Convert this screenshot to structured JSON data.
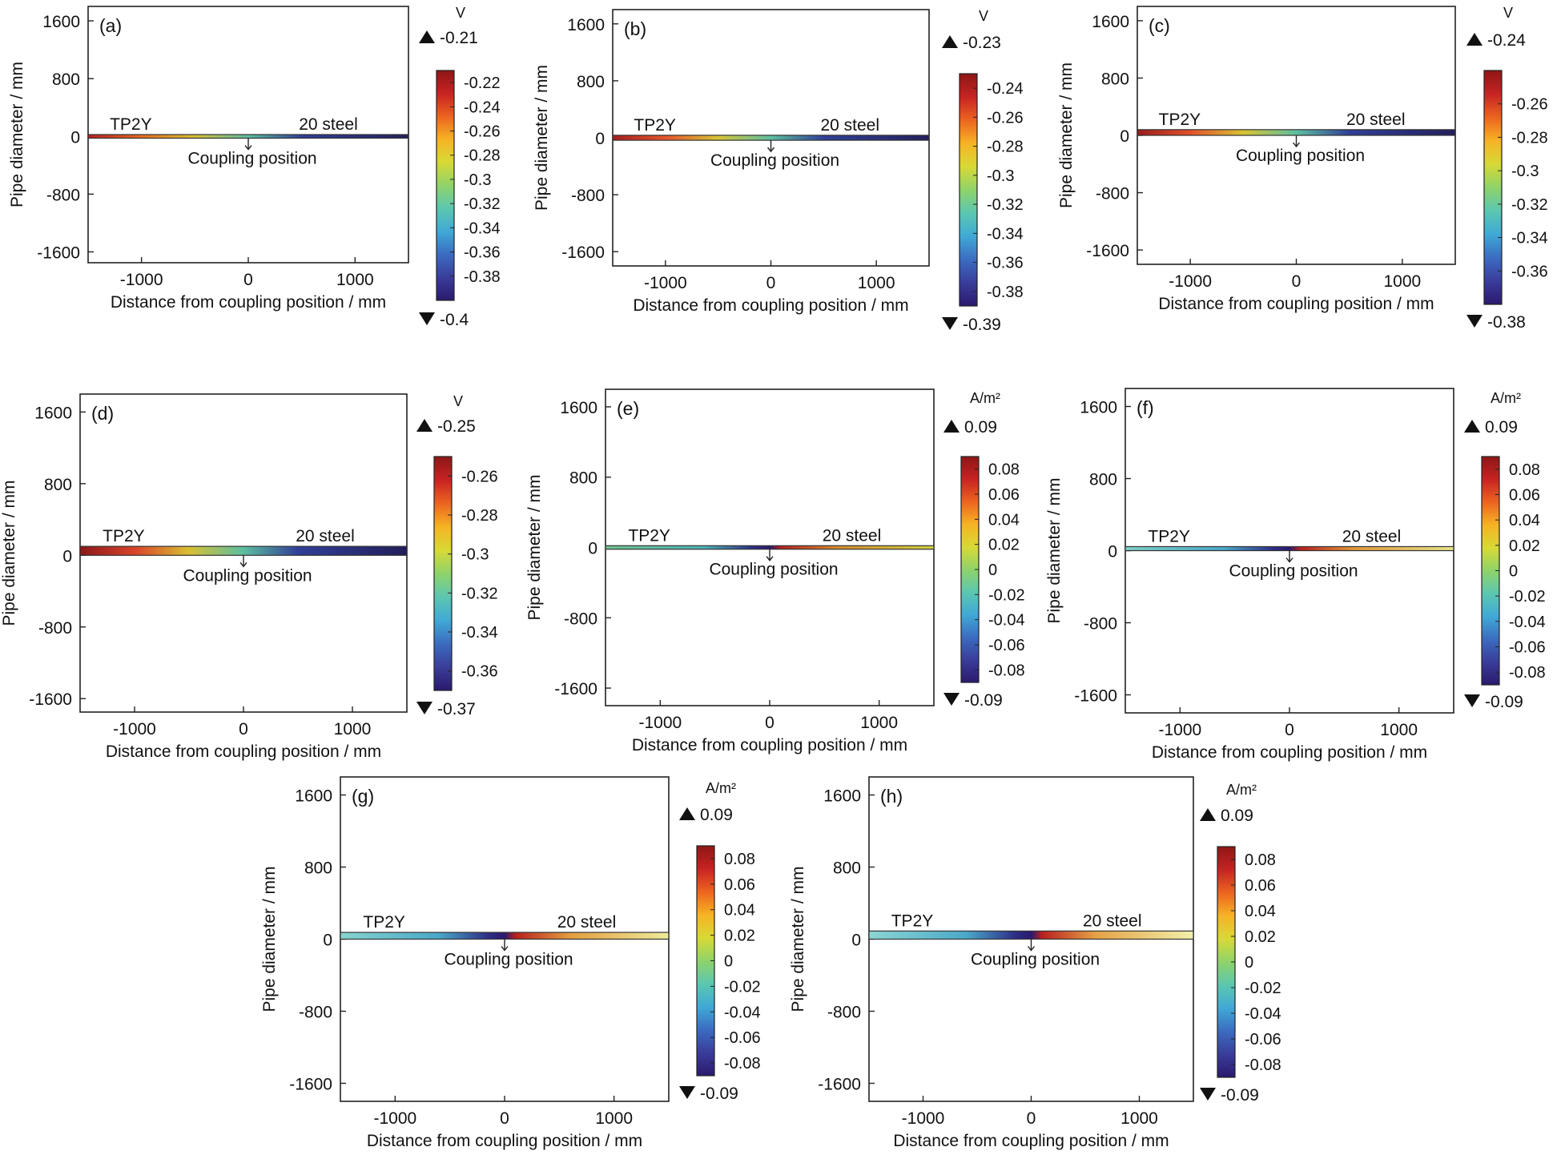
{
  "colormap": [
    "#2b1a6e",
    "#3a3d9a",
    "#3b6cc0",
    "#40a9d6",
    "#5cc7b0",
    "#8fd36a",
    "#d8d935",
    "#f6b324",
    "#ec6420",
    "#c72323",
    "#8e1616"
  ],
  "chart_data": [
    {
      "type": "heatmap",
      "panel": "(a)",
      "xlabel": "Distance from coupling position / mm",
      "ylabel": "Pipe diameter / mm",
      "xticks": [
        -1000,
        0,
        1000
      ],
      "yticks": [
        1600,
        800,
        0,
        -800,
        -1600
      ],
      "xlim": [
        -1500,
        1500
      ],
      "ylim": [
        -1750,
        1800
      ],
      "unit": "V",
      "cmax": "-0.21",
      "cmin": "-0.4",
      "colorbar_ticks": [
        "-0.22",
        "-0.24",
        "-0.26",
        "-0.28",
        "-0.3",
        "-0.32",
        "-0.34",
        "-0.36",
        "-0.38"
      ],
      "labels": {
        "left": "TP2Y",
        "right": "20 steel",
        "coupling": "Coupling position"
      },
      "pipe_y": [
        -25,
        25
      ],
      "field": [
        [
          "-1500",
          "#b82020"
        ],
        [
          "-1000",
          "#e86b20"
        ],
        [
          "-500",
          "#d8c032"
        ],
        [
          "0",
          "#5cbfa0"
        ],
        [
          "500",
          "#2e3f98"
        ],
        [
          "1500",
          "#24205e"
        ]
      ]
    },
    {
      "type": "heatmap",
      "panel": "(b)",
      "xlabel": "Distance from coupling position / mm",
      "ylabel": "Pipe diameter / mm",
      "xticks": [
        -1000,
        0,
        1000
      ],
      "yticks": [
        1600,
        800,
        0,
        -800,
        -1600
      ],
      "xlim": [
        -1500,
        1500
      ],
      "ylim": [
        -1800,
        1800
      ],
      "unit": "V",
      "cmax": "-0.23",
      "cmin": "-0.39",
      "colorbar_ticks": [
        "-0.24",
        "-0.26",
        "-0.28",
        "-0.3",
        "-0.32",
        "-0.34",
        "-0.36",
        "-0.38"
      ],
      "labels": {
        "left": "TP2Y",
        "right": "20 steel",
        "coupling": "Coupling position"
      },
      "pipe_y": [
        -35,
        35
      ],
      "field": [
        [
          "-1500",
          "#a61c1c"
        ],
        [
          "-1000",
          "#e5552b"
        ],
        [
          "-500",
          "#d7c534"
        ],
        [
          "0",
          "#5cbfa0"
        ],
        [
          "500",
          "#2f4196"
        ],
        [
          "1500",
          "#231f5c"
        ]
      ]
    },
    {
      "type": "heatmap",
      "panel": "(c)",
      "xlabel": "Distance from coupling position / mm",
      "ylabel": "Pipe diameter / mm",
      "xticks": [
        -1000,
        0,
        1000
      ],
      "yticks": [
        1600,
        800,
        0,
        -800,
        -1600
      ],
      "xlim": [
        -1500,
        1500
      ],
      "ylim": [
        -1800,
        1800
      ],
      "unit": "V",
      "cmax": "-0.24",
      "cmin": "-0.38",
      "colorbar_ticks": [
        "-0.26",
        "-0.28",
        "-0.3",
        "-0.32",
        "-0.34",
        "-0.36"
      ],
      "labels": {
        "left": "TP2Y",
        "right": "20 steel",
        "coupling": "Coupling position"
      },
      "pipe_y": [
        0,
        80
      ],
      "field": [
        [
          "-1500",
          "#9a1b1b"
        ],
        [
          "-1000",
          "#e2502a"
        ],
        [
          "-500",
          "#d8c232"
        ],
        [
          "0",
          "#5cbfa0"
        ],
        [
          "500",
          "#303f97"
        ],
        [
          "1500",
          "#231f5c"
        ]
      ]
    },
    {
      "type": "heatmap",
      "panel": "(d)",
      "xlabel": "Distance from coupling position / mm",
      "ylabel": "Pipe diameter / mm",
      "xticks": [
        -1000,
        0,
        1000
      ],
      "yticks": [
        1600,
        800,
        0,
        -800,
        -1600
      ],
      "xlim": [
        -1500,
        1500
      ],
      "ylim": [
        -1750,
        1800
      ],
      "unit": "V",
      "cmax": "-0.25",
      "cmin": "-0.37",
      "colorbar_ticks": [
        "-0.26",
        "-0.28",
        "-0.3",
        "-0.32",
        "-0.34",
        "-0.36"
      ],
      "labels": {
        "left": "TP2Y",
        "right": "20 steel",
        "coupling": "Coupling position"
      },
      "pipe_y": [
        0,
        100
      ],
      "field": [
        [
          "-1500",
          "#8a1818"
        ],
        [
          "-1000",
          "#d8432a"
        ],
        [
          "-500",
          "#d8bf32"
        ],
        [
          "0",
          "#5cbfa0"
        ],
        [
          "500",
          "#303f97"
        ],
        [
          "1500",
          "#221e5a"
        ]
      ]
    },
    {
      "type": "heatmap",
      "panel": "(e)",
      "xlabel": "Distance from coupling position / mm",
      "ylabel": "Pipe diameter / mm",
      "xticks": [
        -1000,
        0,
        1000
      ],
      "yticks": [
        1600,
        800,
        0,
        -800,
        -1600
      ],
      "xlim": [
        -1500,
        1500
      ],
      "ylim": [
        -1800,
        1800
      ],
      "unit": "A/m²",
      "cmax": "0.09",
      "cmin": "-0.09",
      "colorbar_ticks": [
        "0.08",
        "0.06",
        "0.04",
        "0.02",
        "0",
        "-0.02",
        "-0.04",
        "-0.06",
        "-0.08"
      ],
      "labels": {
        "left": "TP2Y",
        "right": "20 steel",
        "coupling": "Coupling position"
      },
      "pipe_y": [
        -20,
        20
      ],
      "field": [
        [
          "-1500",
          "#6ec48e"
        ],
        [
          "-600",
          "#4fb3b8"
        ],
        [
          "-150",
          "#2d2f86"
        ],
        [
          "0",
          "#2b1a6e"
        ],
        [
          "100",
          "#b8201f"
        ],
        [
          "600",
          "#d68a2c"
        ],
        [
          "1500",
          "#cfd040"
        ]
      ]
    },
    {
      "type": "heatmap",
      "panel": "(f)",
      "xlabel": "Distance from coupling position / mm",
      "ylabel": "Pipe diameter / mm",
      "xticks": [
        -1000,
        0,
        1000
      ],
      "yticks": [
        1600,
        800,
        0,
        -800,
        -1600
      ],
      "xlim": [
        -1500,
        1500
      ],
      "ylim": [
        -1800,
        1800
      ],
      "unit": "A/m²",
      "cmax": "0.09",
      "cmin": "-0.09",
      "colorbar_ticks": [
        "0.08",
        "0.06",
        "0.04",
        "0.02",
        "0",
        "-0.02",
        "-0.04",
        "-0.06",
        "-0.08"
      ],
      "labels": {
        "left": "TP2Y",
        "right": "20 steel",
        "coupling": "Coupling position"
      },
      "pipe_y": [
        0,
        45
      ],
      "field": [
        [
          "-1500",
          "#7fd0c6"
        ],
        [
          "-600",
          "#4aa8c8"
        ],
        [
          "-150",
          "#2d2f86"
        ],
        [
          "0",
          "#2b1a6e"
        ],
        [
          "100",
          "#b8201f"
        ],
        [
          "600",
          "#e19a3a"
        ],
        [
          "1500",
          "#e6e48a"
        ]
      ]
    },
    {
      "type": "heatmap",
      "panel": "(g)",
      "xlabel": "Distance from coupling position / mm",
      "ylabel": "Pipe diameter / mm",
      "xticks": [
        -1000,
        0,
        1000
      ],
      "yticks": [
        1600,
        800,
        0,
        -800,
        -1600
      ],
      "xlim": [
        -1500,
        1500
      ],
      "ylim": [
        -1800,
        1800
      ],
      "unit": "A/m²",
      "cmax": "0.09",
      "cmin": "-0.09",
      "colorbar_ticks": [
        "0.08",
        "0.06",
        "0.04",
        "0.02",
        "0",
        "-0.02",
        "-0.04",
        "-0.06",
        "-0.08"
      ],
      "labels": {
        "left": "TP2Y",
        "right": "20 steel",
        "coupling": "Coupling position"
      },
      "pipe_y": [
        0,
        75
      ],
      "field": [
        [
          "-1500",
          "#86d4ce"
        ],
        [
          "-600",
          "#4aa8c8"
        ],
        [
          "-150",
          "#2d2f86"
        ],
        [
          "0",
          "#2b1a6e"
        ],
        [
          "100",
          "#b8201f"
        ],
        [
          "600",
          "#e39e40"
        ],
        [
          "1500",
          "#eeec9c"
        ]
      ]
    },
    {
      "type": "heatmap",
      "panel": "(h)",
      "xlabel": "Distance from coupling position / mm",
      "ylabel": "Pipe diameter / mm",
      "xticks": [
        -1000,
        0,
        1000
      ],
      "yticks": [
        1600,
        800,
        0,
        -800,
        -1600
      ],
      "xlim": [
        -1500,
        1500
      ],
      "ylim": [
        -1800,
        1800
      ],
      "unit": "A/m²",
      "cmax": "0.09",
      "cmin": "-0.09",
      "colorbar_ticks": [
        "0.08",
        "0.06",
        "0.04",
        "0.02",
        "0",
        "-0.02",
        "-0.04",
        "-0.06",
        "-0.08"
      ],
      "labels": {
        "left": "TP2Y",
        "right": "20 steel",
        "coupling": "Coupling position"
      },
      "pipe_y": [
        0,
        90
      ],
      "field": [
        [
          "-1500",
          "#8cd6d2"
        ],
        [
          "-600",
          "#4aa8c8"
        ],
        [
          "-150",
          "#2d2f86"
        ],
        [
          "0",
          "#2b1a6e"
        ],
        [
          "100",
          "#b8201f"
        ],
        [
          "600",
          "#e5a246"
        ],
        [
          "1500",
          "#f2f0aa"
        ]
      ]
    }
  ]
}
